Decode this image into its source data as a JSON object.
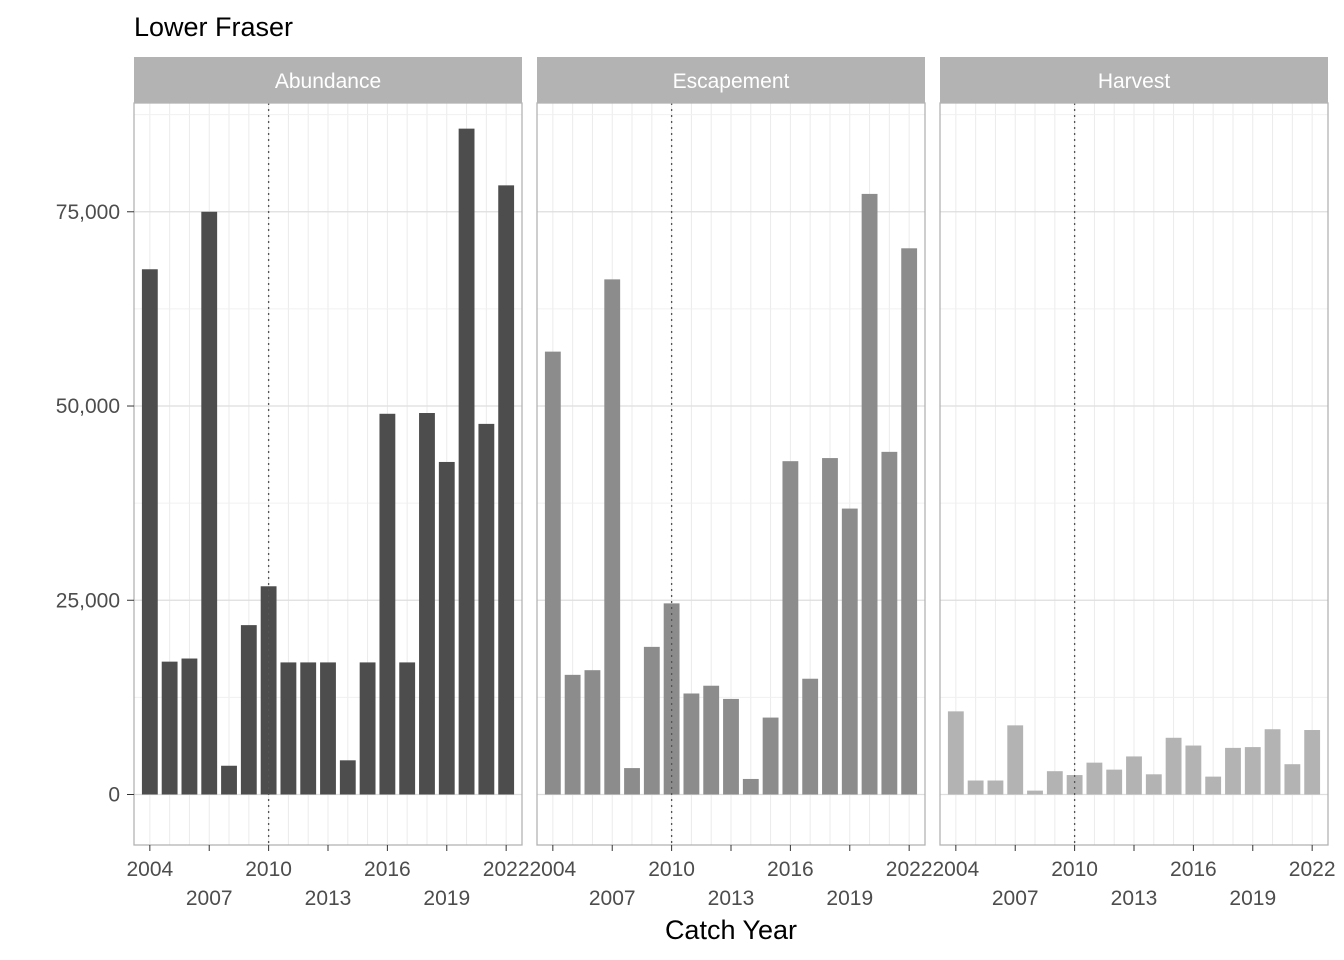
{
  "chart_data": {
    "type": "bar",
    "title": "Lower Fraser",
    "xlabel": "Catch Year",
    "ylabel": "",
    "ylim": [
      -6500,
      89000
    ],
    "xlim": [
      2003.2,
      2022.8
    ],
    "yticks": [
      0,
      25000,
      50000,
      75000
    ],
    "ytick_labels": [
      "0",
      "25,000",
      "50,000",
      "75,000"
    ],
    "xticks_row1": [
      2004,
      2010,
      2016,
      2022
    ],
    "xticks_row2": [
      2007,
      2013,
      2019
    ],
    "reference_line_x": 2010,
    "grid": true,
    "categories": [
      2004,
      2005,
      2006,
      2007,
      2008,
      2009,
      2010,
      2011,
      2012,
      2013,
      2014,
      2015,
      2016,
      2017,
      2018,
      2019,
      2020,
      2021,
      2022
    ],
    "series": [
      {
        "name": "Abundance",
        "color": "#4d4d4d",
        "values": [
          67600,
          17100,
          17500,
          75000,
          3700,
          21800,
          26800,
          17000,
          17000,
          17000,
          4400,
          17000,
          49000,
          17000,
          49100,
          42800,
          85700,
          47700,
          78400
        ]
      },
      {
        "name": "Escapement",
        "color": "#8c8c8c",
        "values": [
          57000,
          15400,
          16000,
          66300,
          3400,
          19000,
          24600,
          13000,
          14000,
          12300,
          2000,
          9900,
          42900,
          14900,
          43300,
          36800,
          77300,
          44100,
          70300
        ]
      },
      {
        "name": "Harvest",
        "color": "#b3b3b3",
        "values": [
          10700,
          1800,
          1800,
          8900,
          500,
          3000,
          2500,
          4100,
          3200,
          4900,
          2600,
          7300,
          6300,
          2300,
          6000,
          6100,
          8400,
          3900,
          8300
        ]
      }
    ]
  }
}
